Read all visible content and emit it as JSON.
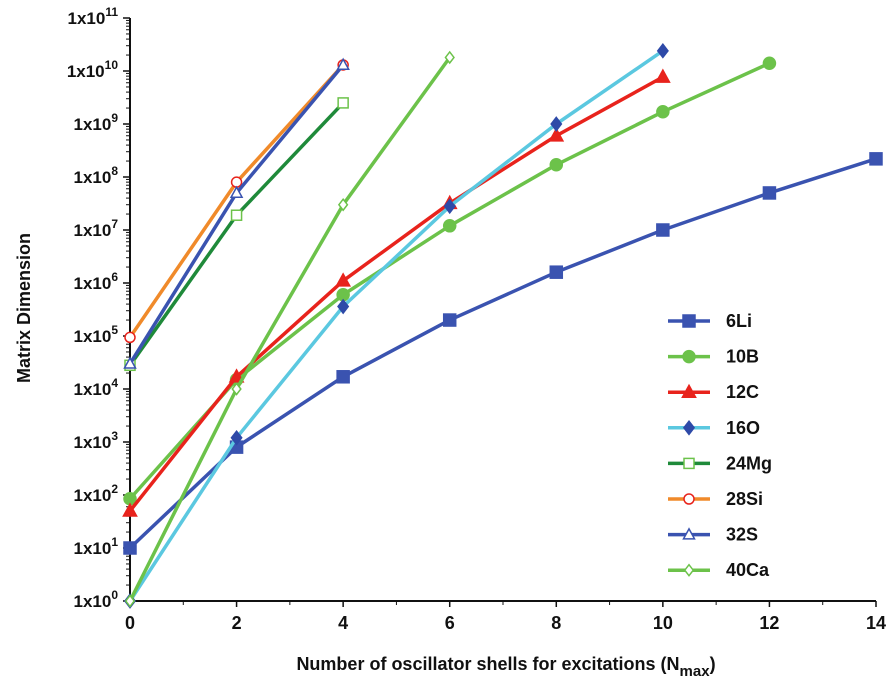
{
  "chart_data": {
    "type": "line",
    "xlabel": "Number of oscillator shells for excitations (N",
    "xlabel_sub": "max",
    "xlabel_close": ")",
    "ylabel": "Matrix Dimension",
    "yscale": "log",
    "xlim": [
      0,
      14
    ],
    "ylim": [
      1,
      100000000000
    ],
    "x_ticks": [
      0,
      2,
      4,
      6,
      8,
      10,
      12,
      14
    ],
    "y_tick_labels": [
      {
        "base": "1x10",
        "exp": "0"
      },
      {
        "base": "1x10",
        "exp": "1"
      },
      {
        "base": "1x10",
        "exp": "2"
      },
      {
        "base": "1x10",
        "exp": "3"
      },
      {
        "base": "1x10",
        "exp": "4"
      },
      {
        "base": "1x10",
        "exp": "5"
      },
      {
        "base": "1x10",
        "exp": "6"
      },
      {
        "base": "1x10",
        "exp": "7"
      },
      {
        "base": "1x10",
        "exp": "8"
      },
      {
        "base": "1x10",
        "exp": "9"
      },
      {
        "base": "1x10",
        "exp": "10"
      },
      {
        "base": "1x10",
        "exp": "11"
      }
    ],
    "legend_position": "lower-right",
    "grid": false,
    "series": [
      {
        "name": "6Li",
        "color": "#3a53b0",
        "marker": "square",
        "filled": true,
        "x": [
          0,
          2,
          4,
          6,
          8,
          10,
          12,
          14
        ],
        "y": [
          10,
          800,
          17000,
          200000,
          1600000,
          10000000,
          50000000,
          220000000
        ]
      },
      {
        "name": "10B",
        "color": "#6cc24a",
        "marker": "circle",
        "filled": true,
        "x": [
          0,
          2,
          4,
          6,
          8,
          10,
          12
        ],
        "y": [
          85,
          15000,
          600000,
          12000000,
          170000000,
          1700000000,
          14000000000
        ]
      },
      {
        "name": "12C",
        "color": "#e8231c",
        "marker": "triangle",
        "filled": true,
        "x": [
          0,
          2,
          4,
          6,
          8,
          10
        ],
        "y": [
          50,
          17000,
          1100000,
          32000000,
          600000000,
          7700000000
        ]
      },
      {
        "name": "16O",
        "color": "#5bc8e0",
        "marker": "diamond",
        "filled": true,
        "marker_color": "#2e4aa8",
        "x": [
          0,
          2,
          4,
          6,
          8,
          10
        ],
        "y": [
          1,
          1200,
          360000,
          28000000,
          1000000000,
          24000000000
        ]
      },
      {
        "name": "24Mg",
        "color": "#1f8a3a",
        "marker": "square",
        "filled": false,
        "marker_color": "#6cc24a",
        "x": [
          0,
          2,
          4
        ],
        "y": [
          28000,
          19000000,
          2500000000
        ]
      },
      {
        "name": "28Si",
        "color": "#f08a2a",
        "marker": "circle",
        "filled": false,
        "marker_color": "#e8231c",
        "x": [
          0,
          2,
          4
        ],
        "y": [
          94000,
          80000000,
          13000000000
        ]
      },
      {
        "name": "32S",
        "color": "#3a53b0",
        "marker": "triangle",
        "filled": false,
        "x": [
          0,
          2,
          4
        ],
        "y": [
          30000,
          50000000,
          13000000000
        ]
      },
      {
        "name": "40Ca",
        "color": "#6cc24a",
        "marker": "diamond",
        "filled": false,
        "x": [
          0,
          2,
          4,
          6
        ],
        "y": [
          1,
          10000,
          30000000,
          18000000000
        ]
      }
    ]
  }
}
